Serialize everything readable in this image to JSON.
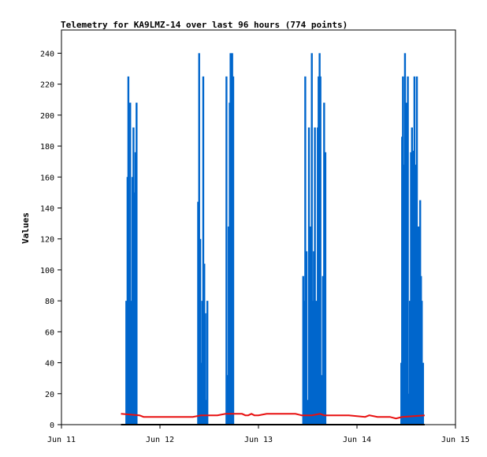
{
  "chart_data": {
    "type": "line",
    "title": "Telemetry for KA9LMZ-14 over last 96 hours (774 points)",
    "xlabel": "",
    "ylabel": "Values",
    "x_ticks": [
      "Jun 11",
      "Jun 12",
      "Jun 13",
      "Jun 14",
      "Jun 15"
    ],
    "xlim": [
      0,
      96
    ],
    "ylim": [
      0,
      255
    ],
    "y_ticks": [
      0,
      20,
      40,
      60,
      80,
      100,
      120,
      140,
      160,
      180,
      200,
      220,
      240
    ],
    "grid": false,
    "colors": {
      "series_blue": "#0066cc",
      "series_red": "#e81010",
      "series_black": "#000000",
      "axis": "#000000"
    },
    "series": [
      {
        "color": "#0066cc",
        "spikes": [
          [
            15.8,
            80
          ],
          [
            16.1,
            160
          ],
          [
            16.3,
            225
          ],
          [
            16.5,
            112
          ],
          [
            16.75,
            208
          ],
          [
            17.0,
            80
          ],
          [
            17.3,
            160
          ],
          [
            17.55,
            192
          ],
          [
            17.8,
            150
          ],
          [
            18.05,
            176
          ],
          [
            18.3,
            208
          ],
          [
            33.3,
            144
          ],
          [
            33.55,
            240
          ],
          [
            33.8,
            120
          ],
          [
            34.05,
            40
          ],
          [
            34.3,
            80
          ],
          [
            34.55,
            225
          ],
          [
            34.8,
            104
          ],
          [
            35.05,
            72
          ],
          [
            35.3,
            16
          ],
          [
            35.55,
            80
          ],
          [
            40.2,
            225
          ],
          [
            40.5,
            32
          ],
          [
            40.75,
            128
          ],
          [
            41.0,
            208
          ],
          [
            41.2,
            240
          ],
          [
            41.4,
            192
          ],
          [
            41.6,
            240
          ],
          [
            41.85,
            225
          ],
          [
            58.9,
            96
          ],
          [
            59.15,
            80
          ],
          [
            59.4,
            225
          ],
          [
            59.7,
            112
          ],
          [
            60.0,
            16
          ],
          [
            60.3,
            192
          ],
          [
            60.6,
            128
          ],
          [
            61.0,
            240
          ],
          [
            61.25,
            80
          ],
          [
            61.5,
            112
          ],
          [
            61.75,
            192
          ],
          [
            62.1,
            80
          ],
          [
            62.45,
            192
          ],
          [
            62.65,
            225
          ],
          [
            62.9,
            240
          ],
          [
            63.1,
            225
          ],
          [
            63.4,
            32
          ],
          [
            63.7,
            96
          ],
          [
            64.0,
            208
          ],
          [
            64.3,
            176
          ],
          [
            82.8,
            40
          ],
          [
            83.0,
            186
          ],
          [
            83.2,
            225
          ],
          [
            83.45,
            168
          ],
          [
            83.7,
            240
          ],
          [
            84.0,
            208
          ],
          [
            84.2,
            128
          ],
          [
            84.4,
            225
          ],
          [
            84.6,
            20
          ],
          [
            84.9,
            80
          ],
          [
            85.15,
            176
          ],
          [
            85.4,
            192
          ],
          [
            85.6,
            160
          ],
          [
            85.8,
            177
          ],
          [
            86.0,
            225
          ],
          [
            86.2,
            144
          ],
          [
            86.4,
            168
          ],
          [
            86.6,
            225
          ],
          [
            86.85,
            128
          ],
          [
            87.1,
            128
          ],
          [
            87.4,
            145
          ],
          [
            87.6,
            96
          ],
          [
            87.8,
            80
          ],
          [
            88.1,
            40
          ]
        ]
      },
      {
        "color": "#e81010",
        "points": [
          [
            14.5,
            7
          ],
          [
            19,
            6
          ],
          [
            20,
            5
          ],
          [
            32,
            5
          ],
          [
            34,
            6
          ],
          [
            38,
            6
          ],
          [
            40,
            7
          ],
          [
            44,
            7
          ],
          [
            44.8,
            6
          ],
          [
            45.5,
            6
          ],
          [
            46.3,
            7
          ],
          [
            47.0,
            6
          ],
          [
            48,
            6
          ],
          [
            50,
            7
          ],
          [
            57,
            7
          ],
          [
            58.5,
            6
          ],
          [
            61,
            6
          ],
          [
            63,
            7
          ],
          [
            64,
            6
          ],
          [
            70,
            6
          ],
          [
            74,
            5
          ],
          [
            75,
            6
          ],
          [
            77,
            5
          ],
          [
            80,
            5
          ],
          [
            81.5,
            4
          ],
          [
            83,
            5
          ],
          [
            88.5,
            6
          ]
        ]
      },
      {
        "color": "#000000",
        "points": [
          [
            14.5,
            0
          ],
          [
            88.5,
            0
          ]
        ]
      }
    ]
  }
}
